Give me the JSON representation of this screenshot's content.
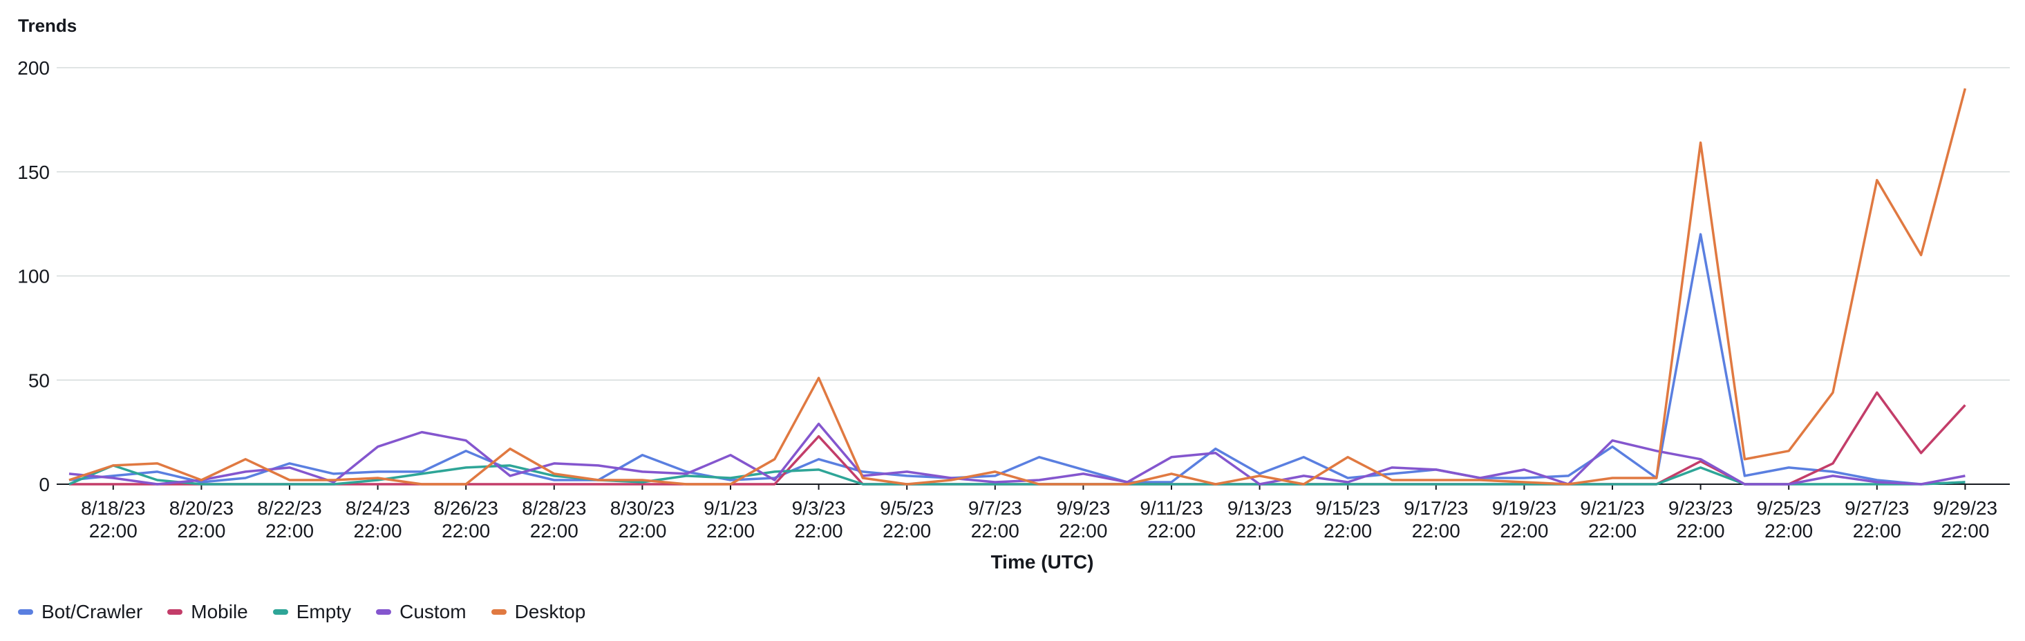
{
  "panel": {
    "title": "Trends"
  },
  "chart_data": {
    "type": "line",
    "xlabel": "Time (UTC)",
    "ylabel": "",
    "ylim": [
      0,
      200
    ],
    "yticks": [
      0,
      50,
      100,
      150,
      200
    ],
    "grid": true,
    "legend_position": "bottom-left",
    "x": [
      "8/17/23 22:00",
      "8/18/23 22:00",
      "8/19/23 22:00",
      "8/20/23 22:00",
      "8/21/23 22:00",
      "8/22/23 22:00",
      "8/23/23 22:00",
      "8/24/23 22:00",
      "8/25/23 22:00",
      "8/26/23 22:00",
      "8/27/23 22:00",
      "8/28/23 22:00",
      "8/29/23 22:00",
      "8/30/23 22:00",
      "8/31/23 22:00",
      "9/1/23 22:00",
      "9/2/23 22:00",
      "9/3/23 22:00",
      "9/4/23 22:00",
      "9/5/23 22:00",
      "9/6/23 22:00",
      "9/7/23 22:00",
      "9/8/23 22:00",
      "9/9/23 22:00",
      "9/10/23 22:00",
      "9/11/23 22:00",
      "9/12/23 22:00",
      "9/13/23 22:00",
      "9/14/23 22:00",
      "9/15/23 22:00",
      "9/16/23 22:00",
      "9/17/23 22:00",
      "9/18/23 22:00",
      "9/19/23 22:00",
      "9/20/23 22:00",
      "9/21/23 22:00",
      "9/22/23 22:00",
      "9/23/23 22:00",
      "9/24/23 22:00",
      "9/25/23 22:00",
      "9/26/23 22:00",
      "9/27/23 22:00",
      "9/28/23 22:00",
      "9/29/23 22:00"
    ],
    "xtick_labels": [
      [
        "8/18/23",
        "22:00"
      ],
      [
        "8/20/23",
        "22:00"
      ],
      [
        "8/22/23",
        "22:00"
      ],
      [
        "8/24/23",
        "22:00"
      ],
      [
        "8/26/23",
        "22:00"
      ],
      [
        "8/28/23",
        "22:00"
      ],
      [
        "8/30/23",
        "22:00"
      ],
      [
        "9/1/23",
        "22:00"
      ],
      [
        "9/3/23",
        "22:00"
      ],
      [
        "9/5/23",
        "22:00"
      ],
      [
        "9/7/23",
        "22:00"
      ],
      [
        "9/9/23",
        "22:00"
      ],
      [
        "9/11/23",
        "22:00"
      ],
      [
        "9/13/23",
        "22:00"
      ],
      [
        "9/15/23",
        "22:00"
      ],
      [
        "9/17/23",
        "22:00"
      ],
      [
        "9/19/23",
        "22:00"
      ],
      [
        "9/21/23",
        "22:00"
      ],
      [
        "9/23/23",
        "22:00"
      ],
      [
        "9/25/23",
        "22:00"
      ],
      [
        "9/27/23",
        "22:00"
      ],
      [
        "9/29/23",
        "22:00"
      ]
    ],
    "series": [
      {
        "name": "Bot/Crawler",
        "color": "#5a7fe0",
        "values": [
          2,
          4,
          6,
          1,
          3,
          10,
          5,
          6,
          6,
          16,
          7,
          2,
          2,
          14,
          6,
          2,
          3,
          12,
          6,
          4,
          3,
          4,
          13,
          7,
          1,
          1,
          17,
          5,
          13,
          3,
          5,
          7,
          3,
          3,
          4,
          18,
          3,
          120,
          4,
          8,
          6,
          2,
          0,
          1
        ]
      },
      {
        "name": "Mobile",
        "color": "#c33d69",
        "values": [
          0,
          0,
          0,
          0,
          0,
          0,
          0,
          0,
          0,
          0,
          0,
          0,
          0,
          0,
          0,
          0,
          0,
          23,
          0,
          0,
          0,
          0,
          0,
          0,
          0,
          0,
          0,
          0,
          0,
          0,
          0,
          0,
          0,
          0,
          0,
          0,
          0,
          11,
          0,
          0,
          10,
          44,
          15,
          38
        ]
      },
      {
        "name": "Empty",
        "color": "#2ea597",
        "values": [
          0,
          9,
          2,
          0,
          0,
          0,
          0,
          2,
          5,
          8,
          9,
          4,
          2,
          1,
          4,
          3,
          6,
          7,
          0,
          0,
          0,
          0,
          0,
          0,
          0,
          0,
          0,
          0,
          0,
          0,
          0,
          0,
          0,
          0,
          0,
          0,
          0,
          8,
          0,
          0,
          0,
          0,
          0,
          1
        ]
      },
      {
        "name": "Custom",
        "color": "#8456ce",
        "values": [
          5,
          3,
          0,
          2,
          6,
          8,
          1,
          18,
          25,
          21,
          4,
          10,
          9,
          6,
          5,
          14,
          2,
          29,
          4,
          6,
          3,
          1,
          2,
          5,
          1,
          13,
          15,
          0,
          4,
          1,
          8,
          7,
          3,
          7,
          0,
          21,
          16,
          12,
          0,
          0,
          4,
          1,
          0,
          4
        ]
      },
      {
        "name": "Desktop",
        "color": "#e07941",
        "values": [
          2,
          9,
          10,
          2,
          12,
          2,
          2,
          3,
          0,
          0,
          17,
          5,
          2,
          2,
          0,
          0,
          12,
          51,
          3,
          0,
          2,
          6,
          0,
          0,
          0,
          5,
          0,
          4,
          0,
          13,
          2,
          2,
          2,
          1,
          0,
          3,
          3,
          164,
          12,
          16,
          44,
          146,
          110,
          190
        ]
      }
    ]
  }
}
